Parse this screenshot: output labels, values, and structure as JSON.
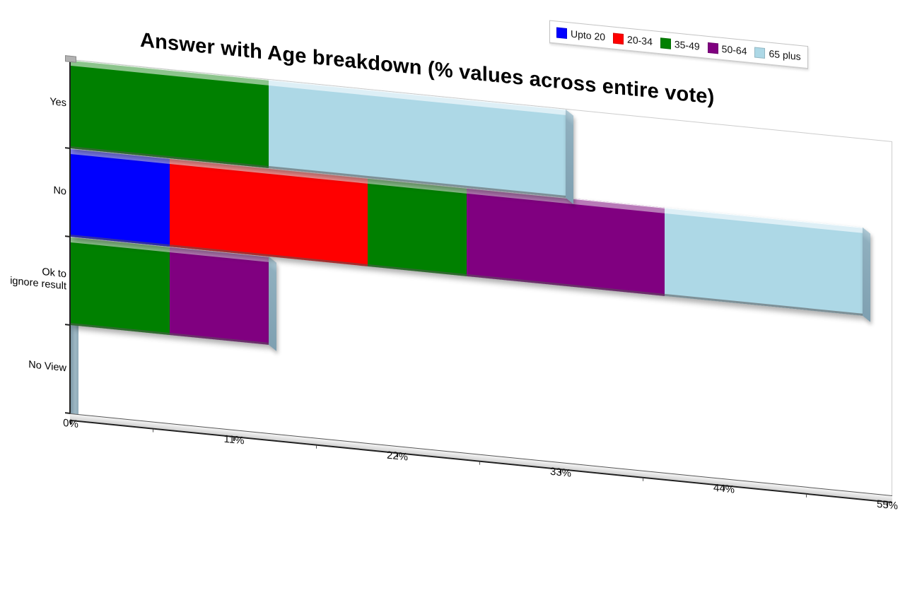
{
  "chart_data": {
    "type": "bar",
    "variant": "horizontal-stacked-3d-skewed",
    "title": "Answer with Age breakdown (% values across entire vote)",
    "categories": [
      "Yes",
      "No",
      "Ok to\nignore result",
      "No View"
    ],
    "series": [
      {
        "name": "Upto 20",
        "color": "#0000ff",
        "light": "#7d7df2",
        "values": [
          0,
          6.67,
          0,
          0
        ]
      },
      {
        "name": "20-34",
        "color": "#ff0000",
        "light": "#f98f8f",
        "values": [
          0,
          13.33,
          0,
          0
        ]
      },
      {
        "name": "35-49",
        "color": "#008000",
        "light": "#8cc48c",
        "values": [
          13.33,
          6.67,
          6.67,
          0
        ]
      },
      {
        "name": "50-64",
        "color": "#800080",
        "light": "#b87ab8",
        "values": [
          0,
          13.33,
          6.67,
          0
        ]
      },
      {
        "name": "65 plus",
        "color": "#add8e6",
        "light": "#ddeff6",
        "values": [
          20,
          13.33,
          0,
          0
        ]
      }
    ],
    "x_tick_labels": [
      "0%",
      "11%",
      "22%",
      "33%",
      "44%",
      "55%"
    ],
    "xlim": [
      0,
      55
    ],
    "x_tick_step": 11,
    "x_minor_tick_step": 5.5,
    "legend_position": "top-right",
    "grid": false,
    "category_totals": [
      33.33,
      53.33,
      13.33,
      0
    ]
  },
  "style": {
    "side_face": "#7fa0b1",
    "wall": "#8fabb9",
    "axis_line": "#222222",
    "frame": "#cccccc",
    "background": "#ffffff",
    "title_color": "#000000"
  }
}
